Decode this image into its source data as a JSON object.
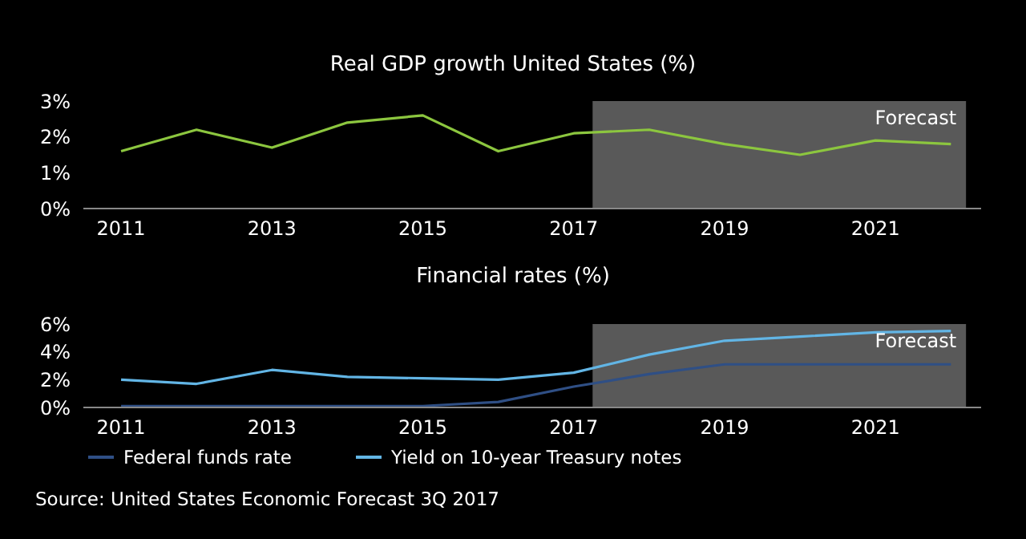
{
  "chart_data": [
    {
      "type": "line",
      "title": "Real GDP growth United States (%)",
      "x": [
        2011,
        2012,
        2013,
        2014,
        2015,
        2016,
        2017,
        2018,
        2019,
        2020,
        2021,
        2022
      ],
      "series": [
        {
          "color": "#8cc63f",
          "values": [
            1.6,
            2.2,
            1.7,
            2.4,
            2.6,
            1.6,
            2.1,
            2.2,
            1.8,
            1.5,
            1.9,
            1.8
          ]
        }
      ],
      "xlim": [
        2010.5,
        2022.4
      ],
      "xticks": [
        2011,
        2013,
        2015,
        2017,
        2019,
        2021
      ],
      "ylim": [
        0,
        3
      ],
      "yticks": [
        {
          "value": 0,
          "label": "0%"
        },
        {
          "value": 1,
          "label": "1%"
        },
        {
          "value": 2,
          "label": "2%"
        },
        {
          "value": 3,
          "label": "3%"
        }
      ],
      "bands": [
        {
          "axis": "x",
          "from": 2017.25,
          "to": 2022.2,
          "label": "Forecast",
          "color": "#595959"
        }
      ]
    },
    {
      "type": "line",
      "title": "Financial rates (%)",
      "x": [
        2011,
        2012,
        2013,
        2014,
        2015,
        2016,
        2017,
        2018,
        2019,
        2020,
        2021,
        2022
      ],
      "series": [
        {
          "name": "Federal funds rate",
          "color": "#2f4f85",
          "values": [
            0.1,
            0.1,
            0.1,
            0.1,
            0.1,
            0.4,
            1.5,
            2.4,
            3.1,
            3.1,
            3.1,
            3.1
          ]
        },
        {
          "name": "Yield on 10-year Treasury notes",
          "color": "#62b5e5",
          "values": [
            2.0,
            1.7,
            2.7,
            2.2,
            2.1,
            2.0,
            2.5,
            3.8,
            4.8,
            5.1,
            5.4,
            5.5
          ]
        }
      ],
      "xlim": [
        2010.5,
        2022.4
      ],
      "xticks": [
        2011,
        2013,
        2015,
        2017,
        2019,
        2021
      ],
      "ylim": [
        0,
        6
      ],
      "yticks": [
        {
          "value": 0,
          "label": "0%"
        },
        {
          "value": 2,
          "label": "2%"
        },
        {
          "value": 4,
          "label": "4%"
        },
        {
          "value": 6,
          "label": "6%"
        }
      ],
      "bands": [
        {
          "axis": "x",
          "from": 2017.25,
          "to": 2022.2,
          "label": "Forecast",
          "color": "#595959"
        }
      ],
      "legend": "bottom",
      "annotations": [
        "Source: United States Economic Forecast 3Q 2017"
      ]
    }
  ]
}
